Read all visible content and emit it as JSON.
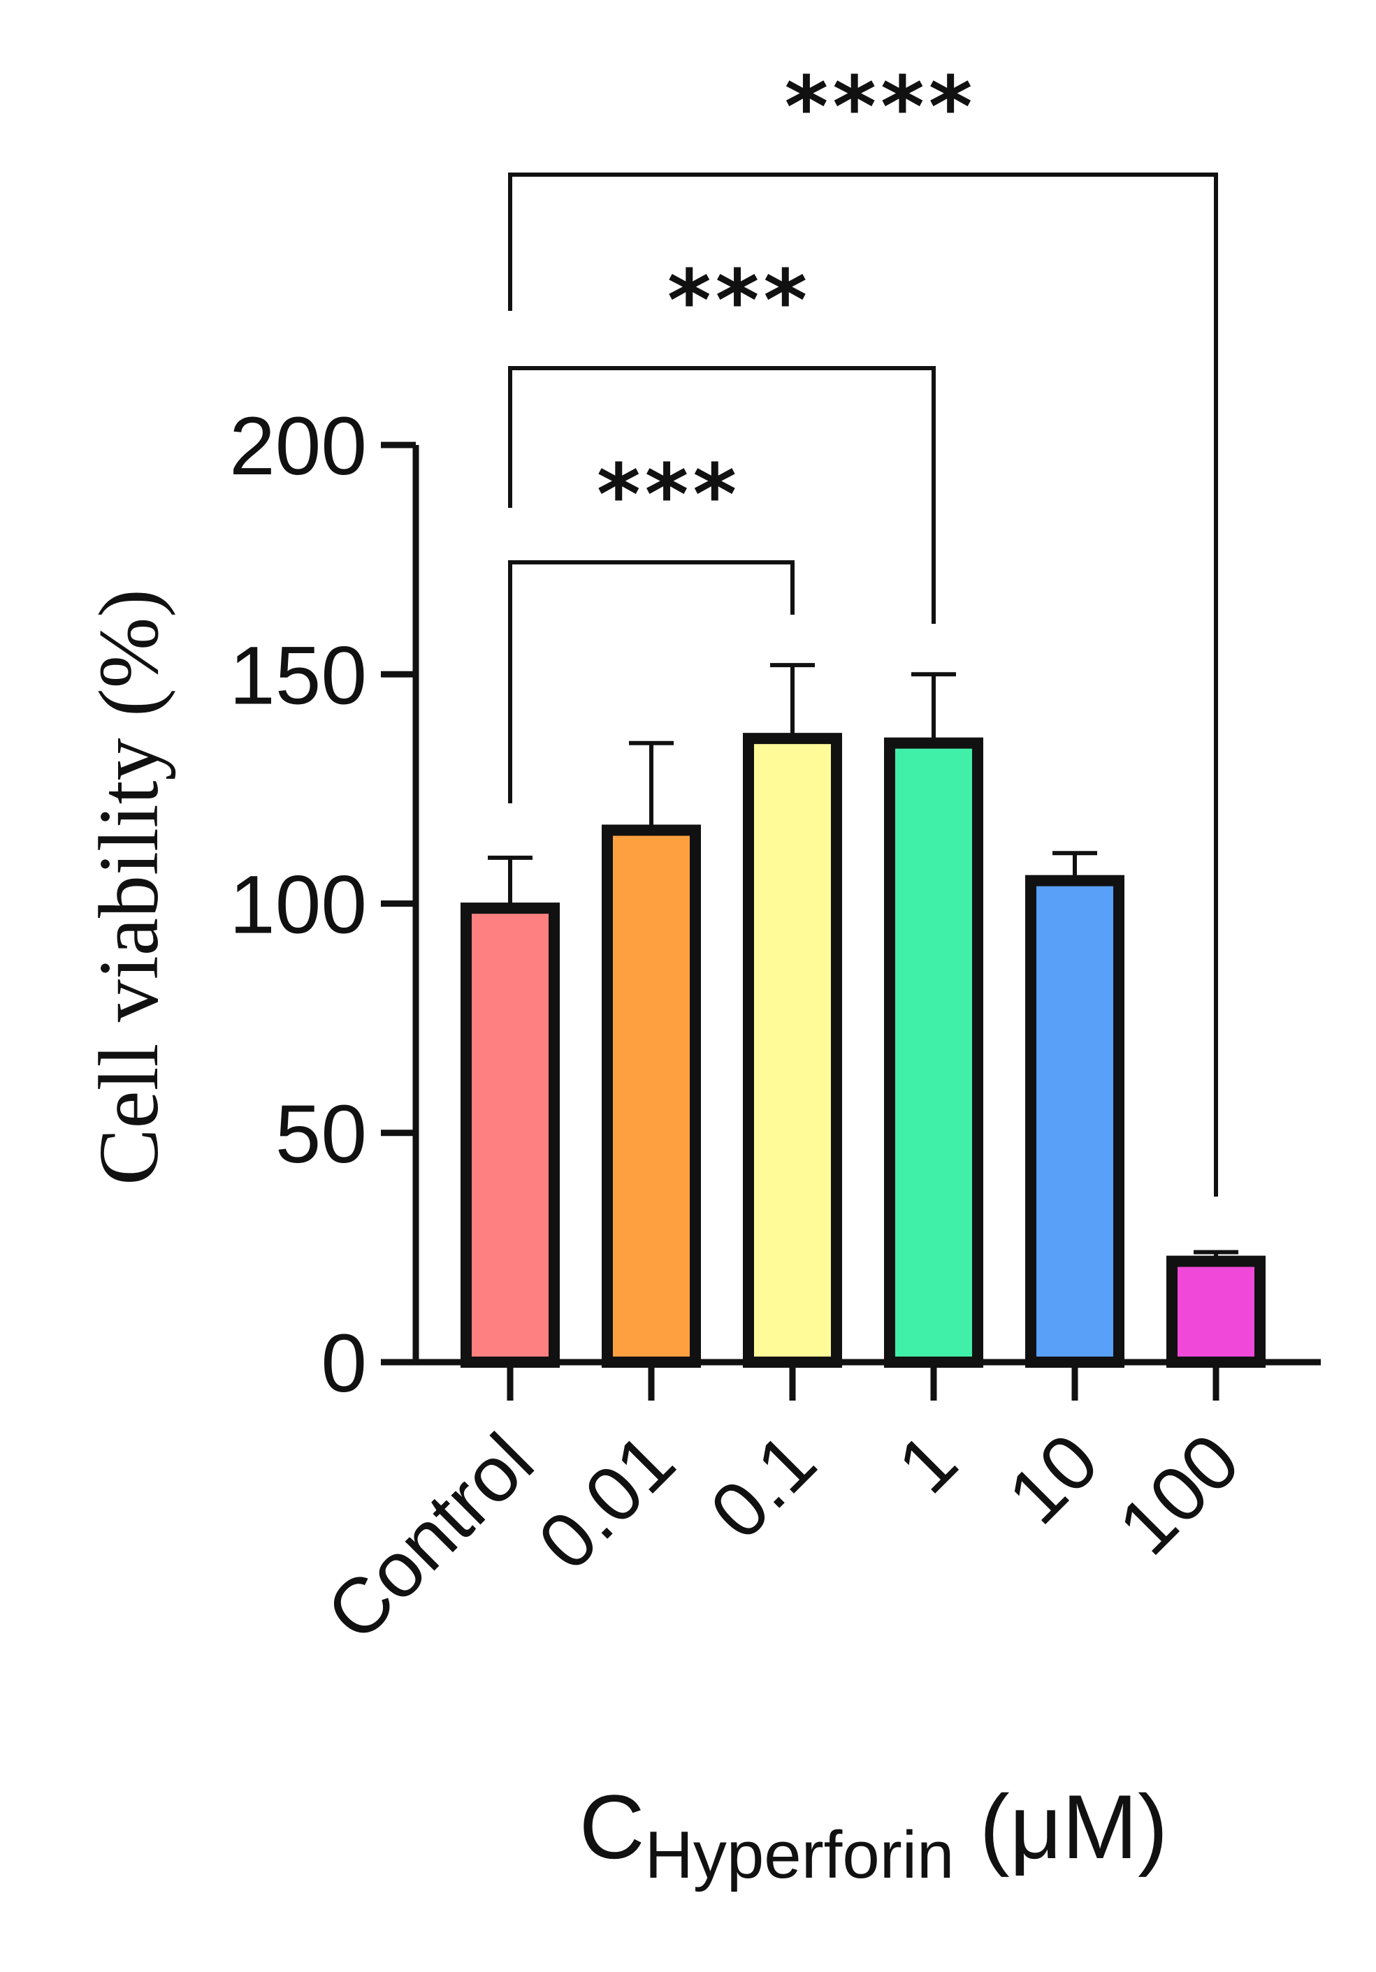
{
  "chart_data": {
    "type": "bar",
    "categories": [
      "Control",
      "0.01",
      "0.1",
      "1",
      "10",
      "100"
    ],
    "series": [
      {
        "values": [
          99,
          116,
          136,
          135,
          105,
          22
        ],
        "errors": [
          11,
          19,
          16,
          15,
          6,
          2
        ],
        "colors": [
          "#ff8080",
          "#ffa040",
          "#fffb98",
          "#40f0a8",
          "#58a0f8",
          "#f048d8"
        ]
      }
    ],
    "ylim": [
      0,
      200
    ],
    "yticks": [
      "0",
      "50",
      "100",
      "150",
      "200"
    ],
    "ylabel": "Cell viability (%)",
    "xlabel": {
      "main": "C",
      "sub": "Hyperforin",
      "unit": " (μM)"
    },
    "grid": false,
    "significance": [
      {
        "from": 0,
        "to": 2,
        "label": "***"
      },
      {
        "from": 0,
        "to": 3,
        "label": "***"
      },
      {
        "from": 0,
        "to": 5,
        "label": "****"
      }
    ]
  }
}
